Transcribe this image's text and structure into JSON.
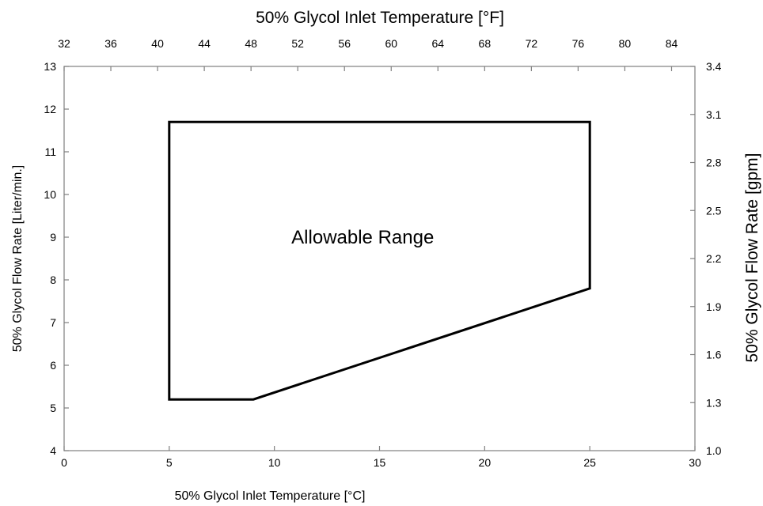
{
  "chart_data": {
    "type": "area",
    "title": "",
    "xlabel": "50% Glycol Inlet Temperature [°C]",
    "ylabel": "50% Glycol Flow Rate [Liter/min.]",
    "x2label": "50% Glycol Inlet Temperature [°F]",
    "y2label": "50% Glycol Flow Rate [gpm]",
    "xlim": [
      0,
      30
    ],
    "ylim": [
      4,
      13
    ],
    "x2lim": [
      32,
      86
    ],
    "y2lim": [
      1.0,
      3.4
    ],
    "x_ticks": [
      0,
      5,
      10,
      15,
      20,
      25,
      30
    ],
    "y_ticks": [
      4,
      5,
      6,
      7,
      8,
      9,
      10,
      11,
      12,
      13
    ],
    "x2_ticks": [
      32,
      36,
      40,
      44,
      48,
      52,
      56,
      60,
      64,
      68,
      72,
      76,
      80,
      84
    ],
    "y2_ticks": [
      "1.0",
      "1.3",
      "1.6",
      "1.9",
      "2.2",
      "2.5",
      "2.8",
      "3.1",
      "3.4"
    ],
    "grid": false,
    "series": [
      {
        "region": [
          {
            "x": 5,
            "y": 5.2
          },
          {
            "x": 9,
            "y": 5.2
          },
          {
            "x": 25,
            "y": 7.8
          },
          {
            "x": 25,
            "y": 11.7
          },
          {
            "x": 5,
            "y": 11.7
          }
        ]
      }
    ],
    "annotations": [
      {
        "text": "Allowable Range",
        "x": 14.2,
        "y": 9.0
      }
    ]
  }
}
